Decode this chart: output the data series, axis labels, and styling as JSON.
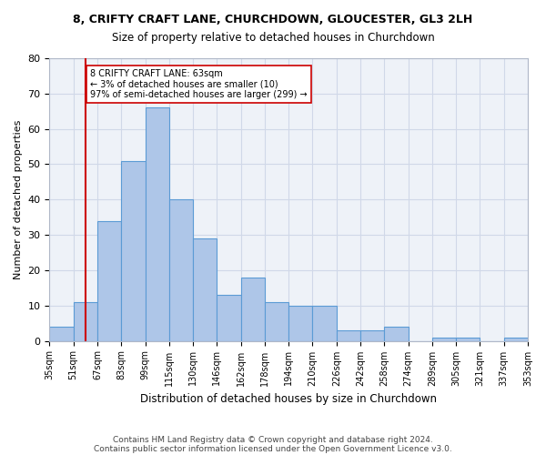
{
  "title_line1": "8, CRIFTY CRAFT LANE, CHURCHDOWN, GLOUCESTER, GL3 2LH",
  "title_line2": "Size of property relative to detached houses in Churchdown",
  "xlabel": "Distribution of detached houses by size in Churchdown",
  "ylabel": "Number of detached properties",
  "bin_labels": [
    "35sqm",
    "51sqm",
    "67sqm",
    "83sqm",
    "99sqm",
    "115sqm",
    "130sqm",
    "146sqm",
    "162sqm",
    "178sqm",
    "194sqm",
    "210sqm",
    "226sqm",
    "242sqm",
    "258sqm",
    "274sqm",
    "289sqm",
    "305sqm",
    "321sqm",
    "337sqm",
    "353sqm"
  ],
  "bar_heights": [
    4,
    11,
    34,
    51,
    66,
    40,
    29,
    13,
    18,
    11,
    10,
    10,
    3,
    3,
    4,
    0,
    1,
    1,
    0,
    1
  ],
  "bar_color": "#aec6e8",
  "bar_edge_color": "#5b9bd5",
  "vline_x": 1.0,
  "vline_color": "#cc0000",
  "annotation_text": "8 CRIFTY CRAFT LANE: 63sqm\n← 3% of detached houses are smaller (10)\n97% of semi-detached houses are larger (299) →",
  "annotation_box_color": "#ffffff",
  "annotation_box_edge": "#cc0000",
  "ylim": [
    0,
    80
  ],
  "yticks": [
    0,
    10,
    20,
    30,
    40,
    50,
    60,
    70,
    80
  ],
  "grid_color": "#d0d8e8",
  "background_color": "#eef2f8",
  "footer_line1": "Contains HM Land Registry data © Crown copyright and database right 2024.",
  "footer_line2": "Contains public sector information licensed under the Open Government Licence v3.0."
}
